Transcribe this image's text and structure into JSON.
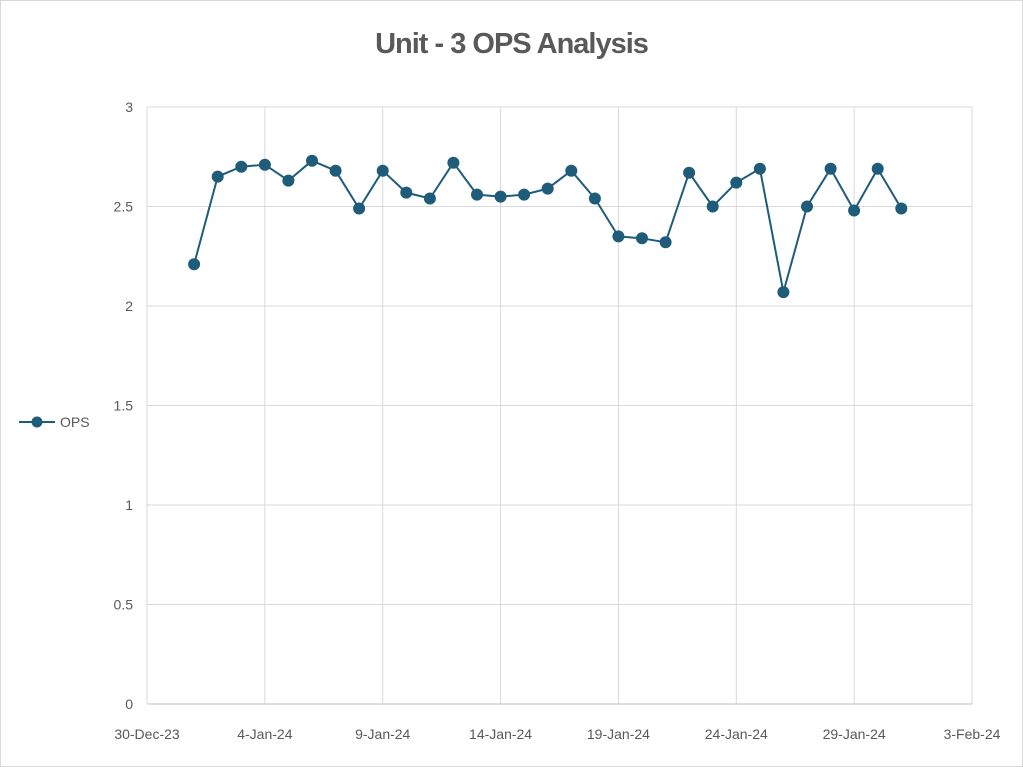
{
  "chart_data": {
    "type": "line",
    "title": "Unit - 3 OPS Analysis",
    "xlabel": "",
    "ylabel": "",
    "ylim": [
      0,
      3
    ],
    "yticks": [
      0,
      0.5,
      1,
      1.5,
      2,
      2.5,
      3
    ],
    "ytick_labels": [
      "0",
      "0.5",
      "1",
      "1.5",
      "2",
      "2.5",
      "3"
    ],
    "xlim": [
      "2023-12-30",
      "2024-02-03"
    ],
    "xticks": [
      "2023-12-30",
      "2024-01-04",
      "2024-01-09",
      "2024-01-14",
      "2024-01-19",
      "2024-01-24",
      "2024-01-29",
      "2024-02-03"
    ],
    "xtick_labels": [
      "30-Dec-23",
      "4-Jan-24",
      "9-Jan-24",
      "14-Jan-24",
      "19-Jan-24",
      "24-Jan-24",
      "29-Jan-24",
      "3-Feb-24"
    ],
    "grid": true,
    "legend_position": "left",
    "colors": {
      "series": "#1f5c7a",
      "grid": "#d9d9d9",
      "text": "#595959"
    },
    "series": [
      {
        "name": "OPS",
        "x": [
          "2024-01-01",
          "2024-01-02",
          "2024-01-03",
          "2024-01-04",
          "2024-01-05",
          "2024-01-06",
          "2024-01-07",
          "2024-01-08",
          "2024-01-09",
          "2024-01-10",
          "2024-01-11",
          "2024-01-12",
          "2024-01-13",
          "2024-01-14",
          "2024-01-15",
          "2024-01-16",
          "2024-01-17",
          "2024-01-18",
          "2024-01-19",
          "2024-01-20",
          "2024-01-21",
          "2024-01-22",
          "2024-01-23",
          "2024-01-24",
          "2024-01-25",
          "2024-01-26",
          "2024-01-27",
          "2024-01-28",
          "2024-01-29",
          "2024-01-30",
          "2024-01-31"
        ],
        "values": [
          2.21,
          2.65,
          2.7,
          2.71,
          2.63,
          2.73,
          2.68,
          2.49,
          2.68,
          2.57,
          2.54,
          2.72,
          2.56,
          2.55,
          2.56,
          2.59,
          2.68,
          2.54,
          2.35,
          2.34,
          2.32,
          2.67,
          2.5,
          2.62,
          2.69,
          2.07,
          2.5,
          2.69,
          2.48,
          2.69,
          2.49
        ]
      }
    ]
  }
}
